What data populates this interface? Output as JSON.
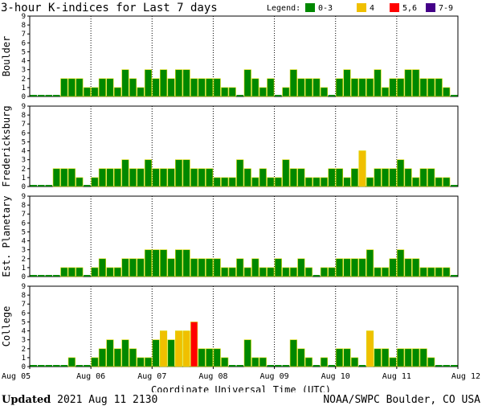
{
  "chart_data": {
    "type": "bar",
    "title": "3-hour K-indices for Last 7 days",
    "legend_label": "Legend:",
    "legend": [
      {
        "label": "0-3",
        "color": "#008800"
      },
      {
        "label": "4",
        "color": "#f0c000"
      },
      {
        "label": "5,6",
        "color": "#ff0000"
      },
      {
        "label": "7-9",
        "color": "#440088"
      }
    ],
    "xlabel": "Coordinate Universal Time (UTC)",
    "x_ticks": [
      "Aug 05",
      "Aug 06",
      "Aug 07",
      "Aug 08",
      "Aug 09",
      "Aug 10",
      "Aug 11",
      "Aug 12"
    ],
    "y_ticks": [
      "0",
      "1",
      "2",
      "3",
      "4",
      "5",
      "6",
      "7",
      "8",
      "9"
    ],
    "ylim": [
      0,
      9
    ],
    "panels": [
      {
        "name": "Boulder",
        "values": [
          0,
          0,
          0,
          0,
          2,
          2,
          2,
          1,
          1,
          2,
          2,
          1,
          3,
          2,
          1,
          3,
          2,
          3,
          2,
          3,
          3,
          2,
          2,
          2,
          2,
          1,
          1,
          0,
          3,
          2,
          1,
          2,
          0,
          1,
          3,
          2,
          2,
          2,
          1,
          0,
          2,
          3,
          2,
          2,
          2,
          3,
          1,
          2,
          2,
          3,
          3,
          2,
          2,
          2,
          1,
          0
        ]
      },
      {
        "name": "Fredericksburg",
        "values": [
          0,
          0,
          0,
          2,
          2,
          2,
          1,
          0,
          1,
          2,
          2,
          2,
          3,
          2,
          2,
          3,
          2,
          2,
          2,
          3,
          3,
          2,
          2,
          2,
          1,
          1,
          1,
          3,
          2,
          1,
          2,
          1,
          1,
          3,
          2,
          2,
          1,
          1,
          1,
          2,
          2,
          1,
          2,
          4,
          1,
          2,
          2,
          2,
          3,
          2,
          1,
          2,
          2,
          1,
          1,
          0
        ]
      },
      {
        "name": "Est. Planetary",
        "values": [
          0,
          0,
          0,
          0,
          1,
          1,
          1,
          0,
          1,
          2,
          1,
          1,
          2,
          2,
          2,
          3,
          3,
          3,
          2,
          3,
          3,
          2,
          2,
          2,
          2,
          1,
          1,
          2,
          1,
          2,
          1,
          1,
          2,
          1,
          1,
          2,
          1,
          0,
          1,
          1,
          2,
          2,
          2,
          2,
          3,
          1,
          1,
          2,
          3,
          2,
          2,
          1,
          1,
          1,
          1,
          0
        ]
      },
      {
        "name": "College",
        "values": [
          0,
          0,
          0,
          0,
          0,
          1,
          0,
          0,
          1,
          2,
          3,
          2,
          3,
          2,
          1,
          1,
          3,
          4,
          3,
          4,
          4,
          5,
          2,
          2,
          2,
          1,
          0,
          0,
          3,
          1,
          1,
          0,
          0,
          0,
          3,
          2,
          1,
          0,
          1,
          0,
          2,
          2,
          1,
          0,
          4,
          2,
          2,
          1,
          2,
          2,
          2,
          2,
          1,
          0,
          0,
          0
        ]
      }
    ]
  },
  "footer": {
    "updated_label": "Updated",
    "updated_time": "2021 Aug 11 2130",
    "source": "NOAA/SWPC Boulder, CO USA"
  }
}
